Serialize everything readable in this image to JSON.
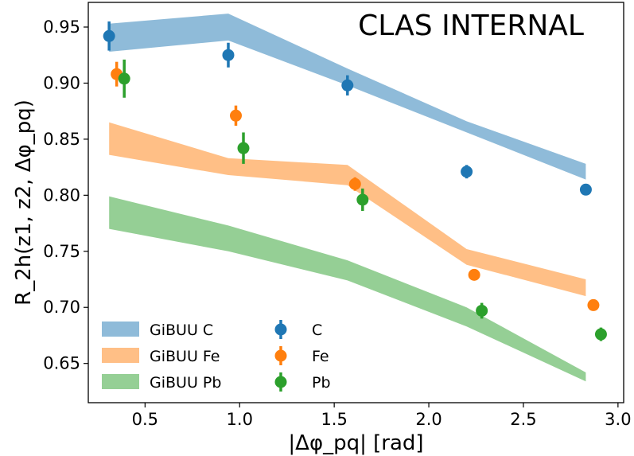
{
  "chart_data": {
    "type": "scatter",
    "annotation": "CLAS INTERNAL",
    "xlabel": "|Δφ_pq|  [rad]",
    "ylabel": "R_2h(z1, z2, Δφ_pq)",
    "xlim": [
      0.2,
      3.03
    ],
    "ylim": [
      0.615,
      0.972
    ],
    "xticks": [
      "0.5",
      "1.0",
      "1.5",
      "2.0",
      "2.5",
      "3.0"
    ],
    "xtick_values": [
      0.5,
      1.0,
      1.5,
      2.0,
      2.5,
      3.0
    ],
    "yticks": [
      "0.65",
      "0.70",
      "0.75",
      "0.80",
      "0.85",
      "0.90",
      "0.95"
    ],
    "ytick_values": [
      0.65,
      0.7,
      0.75,
      0.8,
      0.85,
      0.9,
      0.95
    ],
    "grid": false,
    "legend_position": "lower-left",
    "bands": [
      {
        "name": "GiBUU C",
        "color": "#1f77b4",
        "x": [
          0.31,
          0.94,
          1.57,
          2.2,
          2.83
        ],
        "lower": [
          0.928,
          0.938,
          0.898,
          0.856,
          0.814
        ],
        "upper": [
          0.953,
          0.962,
          0.913,
          0.866,
          0.828
        ]
      },
      {
        "name": "GiBUU Fe",
        "color": "#ff7f0e",
        "x": [
          0.31,
          0.94,
          1.57,
          2.2,
          2.83
        ],
        "lower": [
          0.836,
          0.818,
          0.809,
          0.738,
          0.71
        ],
        "upper": [
          0.865,
          0.833,
          0.827,
          0.752,
          0.725
        ]
      },
      {
        "name": "GiBUU Pb",
        "color": "#2ca02c",
        "x": [
          0.31,
          0.94,
          1.57,
          2.2,
          2.83
        ],
        "lower": [
          0.77,
          0.75,
          0.724,
          0.683,
          0.634
        ],
        "upper": [
          0.799,
          0.773,
          0.742,
          0.7,
          0.642
        ]
      }
    ],
    "series": [
      {
        "name": "C",
        "color": "#1f77b4",
        "x": [
          0.31,
          0.94,
          1.57,
          2.2,
          2.83
        ],
        "y": [
          0.942,
          0.925,
          0.898,
          0.821,
          0.805
        ],
        "yerr": [
          0.013,
          0.011,
          0.009,
          0.006,
          0.004
        ]
      },
      {
        "name": "Fe",
        "color": "#ff7f0e",
        "x": [
          0.35,
          0.98,
          1.61,
          2.24,
          2.87
        ],
        "y": [
          0.908,
          0.871,
          0.81,
          0.729,
          0.702
        ],
        "yerr": [
          0.011,
          0.009,
          0.006,
          0.004,
          0.003
        ]
      },
      {
        "name": "Pb",
        "color": "#2ca02c",
        "x": [
          0.39,
          1.02,
          1.65,
          2.28,
          2.91
        ],
        "y": [
          0.904,
          0.842,
          0.796,
          0.697,
          0.676
        ],
        "yerr": [
          0.017,
          0.014,
          0.01,
          0.007,
          0.006
        ]
      }
    ]
  }
}
